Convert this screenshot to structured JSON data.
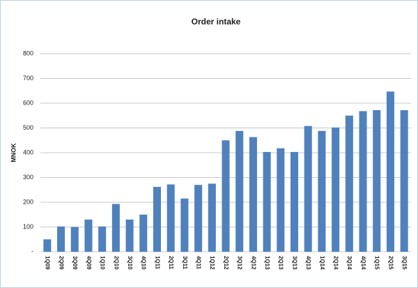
{
  "chart_data": {
    "type": "bar",
    "title": "Order intake",
    "y_label": "MNOK",
    "categories": [
      "1Q09",
      "2Q09",
      "3Q09",
      "4Q09",
      "1Q10",
      "2Q10",
      "3Q10",
      "4Q10",
      "1Q11",
      "2Q11",
      "3Q11",
      "4Q11",
      "1Q12",
      "2Q12",
      "3Q12",
      "4Q12",
      "1Q13",
      "2Q13",
      "3Q13",
      "4Q13",
      "1Q14",
      "2Q14",
      "3Q14",
      "4Q14",
      "1Q15",
      "2Q15",
      "3Q15"
    ],
    "values": [
      50,
      102,
      100,
      130,
      102,
      193,
      130,
      150,
      262,
      272,
      215,
      270,
      275,
      450,
      488,
      463,
      403,
      418,
      403,
      508,
      488,
      502,
      550,
      568,
      572,
      647,
      572
    ],
    "color": "#4f81bd",
    "ylim": [
      0,
      800
    ],
    "yticks": [
      {
        "value": 0,
        "label": "-"
      },
      100,
      200,
      300,
      400,
      500,
      600,
      700,
      800
    ],
    "grid": true
  }
}
